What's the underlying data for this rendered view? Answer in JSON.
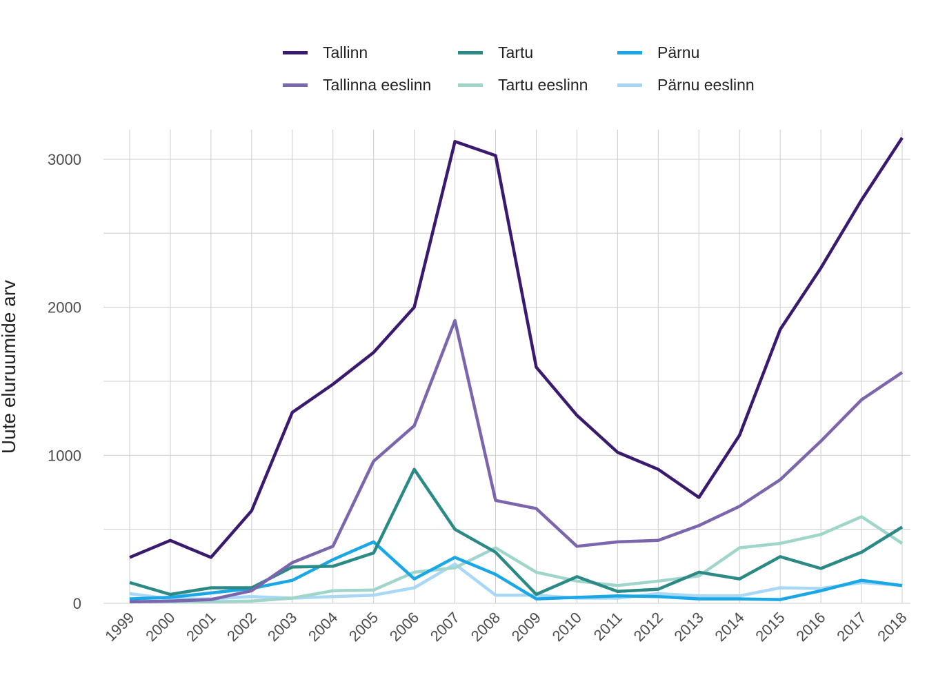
{
  "chart_data": {
    "type": "line",
    "title": "",
    "xlabel": "",
    "ylabel": "Uute eluruumide arv",
    "x": [
      "1999",
      "2000",
      "2001",
      "2002",
      "2003",
      "2004",
      "2005",
      "2006",
      "2007",
      "2008",
      "2009",
      "2010",
      "2011",
      "2012",
      "2013",
      "2014",
      "2015",
      "2016",
      "2017",
      "2018"
    ],
    "y_ticks": [
      0,
      1000,
      2000,
      3000
    ],
    "ylim": [
      0,
      3200
    ],
    "grid": true,
    "legend_position": "top",
    "series": [
      {
        "name": "Tallinn",
        "color": "#3a1a6e",
        "values": [
          310,
          425,
          310,
          625,
          1290,
          1480,
          1695,
          2000,
          3120,
          3025,
          1595,
          1270,
          1020,
          905,
          715,
          1135,
          1850,
          2265,
          2725,
          3145
        ]
      },
      {
        "name": "Tartu",
        "color": "#2b8a86",
        "values": [
          140,
          60,
          105,
          105,
          245,
          250,
          340,
          905,
          500,
          345,
          60,
          180,
          80,
          95,
          210,
          165,
          315,
          235,
          345,
          515
        ]
      },
      {
        "name": "Pärnu",
        "color": "#1aa7e6",
        "values": [
          30,
          40,
          70,
          100,
          155,
          295,
          415,
          165,
          310,
          195,
          30,
          40,
          50,
          45,
          30,
          30,
          25,
          85,
          155,
          120
        ]
      },
      {
        "name": "Tallinna eeslinn",
        "color": "#7b66ae",
        "values": [
          10,
          15,
          25,
          85,
          275,
          385,
          960,
          1200,
          1910,
          695,
          640,
          385,
          415,
          425,
          525,
          655,
          835,
          1095,
          1375,
          1560
        ]
      },
      {
        "name": "Tartu eeslinn",
        "color": "#a0d5cc",
        "values": [
          10,
          10,
          10,
          15,
          35,
          85,
          90,
          210,
          240,
          375,
          210,
          150,
          120,
          150,
          185,
          375,
          405,
          465,
          585,
          405
        ]
      },
      {
        "name": "Pärnu eeslinn",
        "color": "#a8d8f5",
        "values": [
          65,
          30,
          30,
          45,
          35,
          45,
          55,
          105,
          265,
          55,
          55,
          35,
          35,
          65,
          50,
          50,
          105,
          100,
          140,
          120
        ]
      }
    ]
  }
}
